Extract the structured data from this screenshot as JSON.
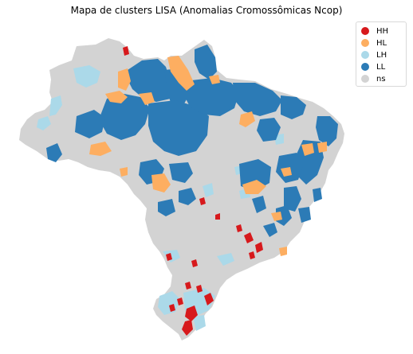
{
  "title": "Mapa de clusters LISA (Anomalias Cromossômicas Ncop)",
  "legend": [
    {
      "label": "HH",
      "color": "#d7191c"
    },
    {
      "label": "HL",
      "color": "#fdae61"
    },
    {
      "label": "LH",
      "color": "#abd9e9"
    },
    {
      "label": "LL",
      "color": "#2c7bb6"
    },
    {
      "label": "ns",
      "color": "#d3d3d3"
    }
  ],
  "colors": {
    "HH": "#d7191c",
    "HL": "#fdae61",
    "LH": "#abd9e9",
    "LL": "#2c7bb6",
    "ns": "#d3d3d3"
  }
}
